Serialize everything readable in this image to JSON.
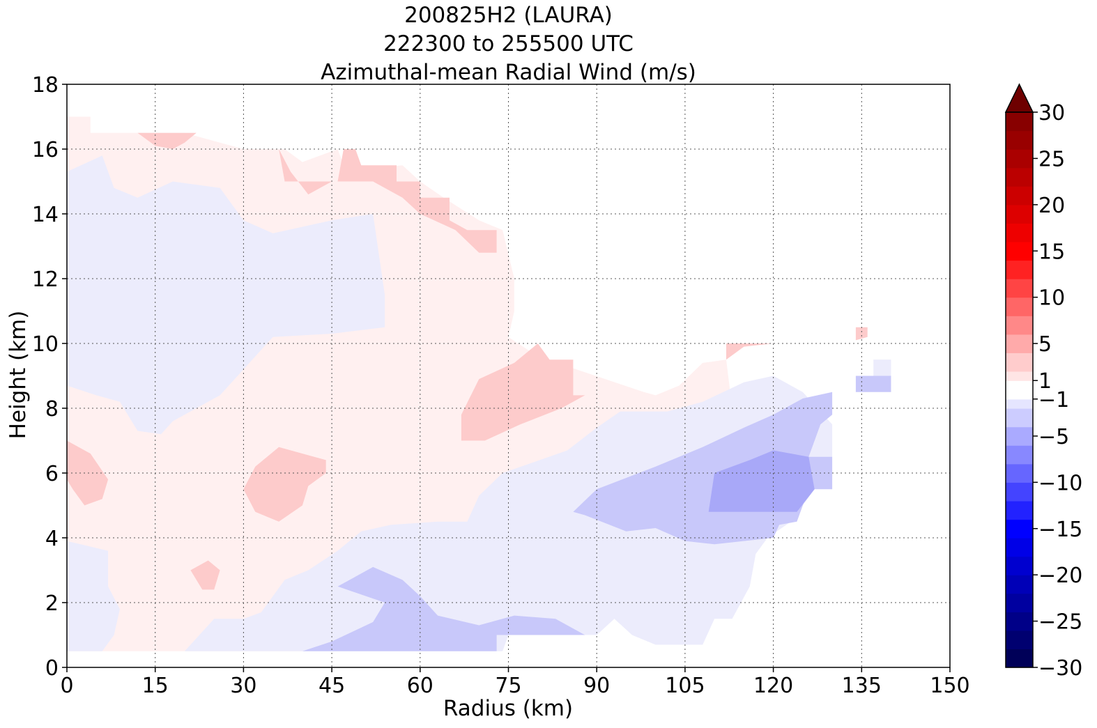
{
  "chart_data": {
    "type": "heatmap",
    "title_lines": [
      "200825H2 (LAURA)",
      "222300 to 255500 UTC",
      "Azimuthal-mean Radial Wind (m/s)"
    ],
    "xlabel": "Radius (km)",
    "ylabel": "Height (km)",
    "xlim": [
      0,
      150
    ],
    "ylim": [
      0,
      18
    ],
    "xticks": [
      0,
      15,
      30,
      45,
      60,
      75,
      90,
      105,
      120,
      135,
      150
    ],
    "yticks": [
      0,
      2,
      4,
      6,
      8,
      10,
      12,
      14,
      16,
      18
    ],
    "grid": true,
    "colorbar": {
      "min": -30,
      "max": 30,
      "extend": "max",
      "levels": [
        -30,
        -28,
        -26,
        -24,
        -22,
        -20,
        -18,
        -16,
        -14,
        -12,
        -10,
        -8,
        -6,
        -4,
        -2,
        -1,
        1,
        2,
        4,
        6,
        8,
        10,
        12,
        14,
        16,
        18,
        20,
        22,
        24,
        26,
        28,
        30
      ],
      "tick_values": [
        30,
        25,
        20,
        15,
        10,
        5,
        1,
        -1,
        -5,
        -10,
        -15,
        -20,
        -25,
        -30
      ],
      "tick_labels": [
        "30",
        "25",
        "20",
        "15",
        "10",
        "5",
        "1",
        "−1",
        "−5",
        "−10",
        "−15",
        "−20",
        "−25",
        "−30"
      ]
    },
    "regions": [
      {
        "value": 0.5,
        "color": "#fff0f0",
        "points": [
          [
            0,
            0.5
          ],
          [
            30,
            0.5
          ],
          [
            40,
            0.5
          ],
          [
            45,
            0.8
          ],
          [
            55,
            1.3
          ],
          [
            60,
            1.6
          ],
          [
            68,
            2.2
          ],
          [
            72,
            3.2
          ],
          [
            75,
            3.8
          ],
          [
            78,
            4.7
          ],
          [
            85,
            5.2
          ],
          [
            95,
            6.0
          ],
          [
            105,
            6.5
          ],
          [
            110,
            7.5
          ],
          [
            113,
            8.0
          ],
          [
            112,
            9.5
          ],
          [
            108,
            9.4
          ],
          [
            104,
            8.7
          ],
          [
            100,
            8.4
          ],
          [
            98,
            8.5
          ],
          [
            80,
            9.6
          ],
          [
            75,
            10.2
          ],
          [
            76,
            11.0
          ],
          [
            76,
            12.0
          ],
          [
            74,
            13.5
          ],
          [
            70,
            13.8
          ],
          [
            64,
            14.5
          ],
          [
            60,
            15.0
          ],
          [
            57,
            15.5
          ],
          [
            52,
            15.4
          ],
          [
            47,
            15.5
          ],
          [
            46,
            16.0
          ],
          [
            40,
            15.6
          ],
          [
            37,
            16.0
          ],
          [
            30,
            16.0
          ],
          [
            26,
            16.2
          ],
          [
            20,
            16.5
          ],
          [
            10,
            16.5
          ],
          [
            4,
            16.5
          ],
          [
            4,
            17.0
          ],
          [
            0,
            17.0
          ]
        ]
      },
      {
        "value": -0.5,
        "color": "#ececfc",
        "points": [
          [
            0,
            15.3
          ],
          [
            6,
            15.8
          ],
          [
            8,
            14.8
          ],
          [
            12,
            14.5
          ],
          [
            18,
            15.0
          ],
          [
            26,
            14.8
          ],
          [
            30,
            13.8
          ],
          [
            35,
            13.4
          ],
          [
            45,
            13.8
          ],
          [
            52,
            14.0
          ],
          [
            54,
            11.5
          ],
          [
            54,
            10.5
          ],
          [
            45,
            10.3
          ],
          [
            35,
            10.2
          ],
          [
            30,
            9.2
          ],
          [
            26,
            8.4
          ],
          [
            18,
            7.6
          ],
          [
            16,
            7.2
          ],
          [
            12,
            7.3
          ],
          [
            9,
            8.2
          ],
          [
            5,
            8.4
          ],
          [
            0,
            8.7
          ]
        ]
      },
      {
        "value": -0.5,
        "color": "#ececfc",
        "points": [
          [
            0,
            3.9
          ],
          [
            7,
            3.6
          ],
          [
            7,
            2.5
          ],
          [
            9,
            1.8
          ],
          [
            8,
            1.0
          ],
          [
            6,
            0.5
          ],
          [
            0,
            0.5
          ]
        ]
      },
      {
        "value": -0.5,
        "color": "#ececfc",
        "points": [
          [
            20,
            0.5
          ],
          [
            25,
            1.5
          ],
          [
            30,
            1.5
          ],
          [
            33,
            1.7
          ],
          [
            37,
            2.7
          ],
          [
            41,
            3.0
          ],
          [
            46,
            3.6
          ],
          [
            50,
            4.2
          ],
          [
            55,
            4.4
          ],
          [
            63,
            4.5
          ],
          [
            68,
            4.5
          ],
          [
            70,
            5.3
          ],
          [
            74,
            6.0
          ],
          [
            85,
            6.7
          ],
          [
            90,
            7.4
          ],
          [
            94,
            7.9
          ],
          [
            102,
            7.9
          ],
          [
            108,
            8.2
          ],
          [
            115,
            8.8
          ],
          [
            120,
            9.0
          ],
          [
            125,
            8.5
          ],
          [
            130,
            7.5
          ],
          [
            130,
            6.5
          ],
          [
            127,
            5.5
          ],
          [
            123,
            4.5
          ],
          [
            119,
            4.0
          ],
          [
            117,
            3.5
          ],
          [
            116,
            2.5
          ],
          [
            113,
            1.5
          ],
          [
            110,
            1.5
          ],
          [
            108,
            0.7
          ],
          [
            100,
            0.7
          ],
          [
            96,
            1.0
          ],
          [
            93,
            1.5
          ],
          [
            90,
            1.0
          ],
          [
            75,
            1.0
          ],
          [
            74,
            0.5
          ],
          [
            40,
            0.5
          ]
        ]
      },
      {
        "value": -2,
        "color": "#c8c8fa",
        "points": [
          [
            46,
            2.5
          ],
          [
            52,
            3.1
          ],
          [
            57,
            2.7
          ],
          [
            60,
            2.2
          ],
          [
            63,
            1.6
          ],
          [
            70,
            1.3
          ],
          [
            76,
            1.6
          ],
          [
            83,
            1.5
          ],
          [
            88,
            1.0
          ],
          [
            73,
            1.0
          ],
          [
            73,
            0.5
          ],
          [
            40,
            0.5
          ],
          [
            45,
            0.8
          ],
          [
            52,
            1.4
          ],
          [
            54,
            2.0
          ]
        ]
      },
      {
        "value": -2,
        "color": "#c8c8fa",
        "points": [
          [
            86,
            4.8
          ],
          [
            90,
            5.5
          ],
          [
            100,
            6.2
          ],
          [
            108,
            6.8
          ],
          [
            115,
            7.4
          ],
          [
            120,
            7.8
          ],
          [
            125,
            8.3
          ],
          [
            130,
            8.5
          ],
          [
            130,
            7.8
          ],
          [
            128,
            7.5
          ],
          [
            126,
            6.5
          ],
          [
            130,
            6.5
          ],
          [
            130,
            5.5
          ],
          [
            126,
            5.5
          ],
          [
            124,
            4.5
          ],
          [
            121,
            4.4
          ],
          [
            120,
            4.0
          ],
          [
            115,
            3.9
          ],
          [
            110,
            3.8
          ],
          [
            105,
            3.9
          ],
          [
            100,
            4.3
          ],
          [
            95,
            4.2
          ],
          [
            88,
            4.7
          ]
        ]
      },
      {
        "value": -3,
        "color": "#a8a8f8",
        "points": [
          [
            110,
            6.0
          ],
          [
            116,
            6.4
          ],
          [
            120,
            6.7
          ],
          [
            126,
            6.5
          ],
          [
            127,
            5.5
          ],
          [
            124,
            4.8
          ],
          [
            117,
            4.8
          ],
          [
            109,
            4.8
          ]
        ]
      },
      {
        "value": -2,
        "color": "#c8c8fa",
        "points": [
          [
            134,
            9.0
          ],
          [
            140,
            9.0
          ],
          [
            140,
            8.5
          ],
          [
            134,
            8.5
          ]
        ]
      },
      {
        "value": -0.5,
        "color": "#ececfc",
        "points": [
          [
            137,
            9.5
          ],
          [
            140,
            9.5
          ],
          [
            140,
            9.0
          ],
          [
            137,
            9.0
          ]
        ]
      },
      {
        "value": 2,
        "color": "#fdcbcb",
        "points": [
          [
            0,
            7.0
          ],
          [
            4,
            6.6
          ],
          [
            7,
            5.8
          ],
          [
            6,
            5.2
          ],
          [
            3,
            5.0
          ],
          [
            1,
            5.5
          ],
          [
            0,
            5.8
          ]
        ]
      },
      {
        "value": 2,
        "color": "#fdcbcb",
        "points": [
          [
            30,
            5.5
          ],
          [
            32,
            6.2
          ],
          [
            36,
            6.8
          ],
          [
            42,
            6.5
          ],
          [
            44,
            6.4
          ],
          [
            44,
            6.0
          ],
          [
            41,
            5.6
          ],
          [
            40,
            5.0
          ],
          [
            36,
            4.5
          ],
          [
            32,
            4.8
          ]
        ]
      },
      {
        "value": 2,
        "color": "#fdcbcb",
        "points": [
          [
            21,
            3.0
          ],
          [
            24,
            3.3
          ],
          [
            26,
            3.0
          ],
          [
            25,
            2.4
          ],
          [
            23,
            2.4
          ]
        ]
      },
      {
        "value": 2,
        "color": "#fdcbcb",
        "points": [
          [
            67,
            7.8
          ],
          [
            70,
            8.9
          ],
          [
            76,
            9.4
          ],
          [
            80,
            10.0
          ],
          [
            82,
            9.5
          ],
          [
            86,
            9.5
          ],
          [
            86,
            8.4
          ],
          [
            88,
            8.4
          ],
          [
            84,
            8.0
          ],
          [
            77,
            7.5
          ],
          [
            71,
            7.0
          ],
          [
            67,
            7.0
          ]
        ]
      },
      {
        "value": 2,
        "color": "#fdcbcb",
        "points": [
          [
            112,
            9.5
          ],
          [
            115,
            9.9
          ],
          [
            120,
            10.0
          ],
          [
            112,
            10.0
          ]
        ]
      },
      {
        "value": 2,
        "color": "#fdcbcb",
        "points": [
          [
            134,
            10.5
          ],
          [
            136,
            10.5
          ],
          [
            136,
            10.2
          ],
          [
            134,
            10.1
          ]
        ]
      },
      {
        "value": 2,
        "color": "#fdcbcb",
        "points": [
          [
            12,
            16.5
          ],
          [
            15,
            16.1
          ],
          [
            18,
            16.0
          ],
          [
            20,
            16.2
          ],
          [
            22,
            16.5
          ]
        ]
      },
      {
        "value": 2,
        "color": "#fdcbcb",
        "points": [
          [
            36,
            16.0
          ],
          [
            37,
            15.0
          ],
          [
            42,
            15.0
          ],
          [
            46,
            15.0
          ],
          [
            47,
            16.0
          ],
          [
            49,
            16.0
          ],
          [
            50,
            15.5
          ],
          [
            56,
            15.5
          ],
          [
            56,
            15.0
          ],
          [
            60,
            15.0
          ],
          [
            60,
            14.5
          ],
          [
            65,
            14.5
          ],
          [
            65,
            13.8
          ],
          [
            68,
            13.5
          ],
          [
            73,
            13.5
          ],
          [
            73,
            12.8
          ],
          [
            70,
            12.8
          ],
          [
            66,
            13.5
          ],
          [
            60,
            14.0
          ],
          [
            57,
            14.5
          ],
          [
            52,
            15.0
          ],
          [
            47,
            15.0
          ],
          [
            45,
            15.0
          ],
          [
            41,
            14.6
          ],
          [
            38,
            15.3
          ]
        ]
      }
    ]
  }
}
